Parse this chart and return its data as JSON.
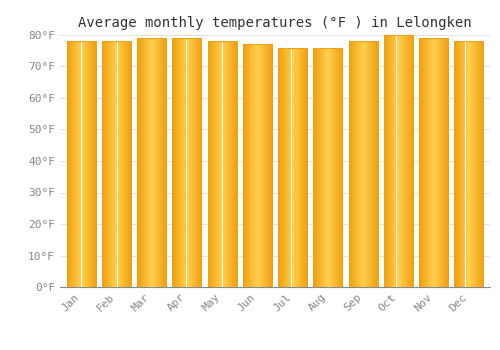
{
  "title": "Average monthly temperatures (°F ) in Lelongken",
  "months": [
    "Jan",
    "Feb",
    "Mar",
    "Apr",
    "May",
    "Jun",
    "Jul",
    "Aug",
    "Sep",
    "Oct",
    "Nov",
    "Dec"
  ],
  "values": [
    78,
    78,
    79,
    79,
    78,
    77,
    76,
    76,
    78,
    80,
    79,
    78
  ],
  "bar_color_outer": "#F0A010",
  "bar_color_inner": "#FFD050",
  "background_color": "#FFFFFF",
  "grid_color": "#DDDDDD",
  "ylim": [
    0,
    80
  ],
  "ytick_step": 10,
  "title_fontsize": 10,
  "tick_fontsize": 8,
  "bar_width": 0.82
}
